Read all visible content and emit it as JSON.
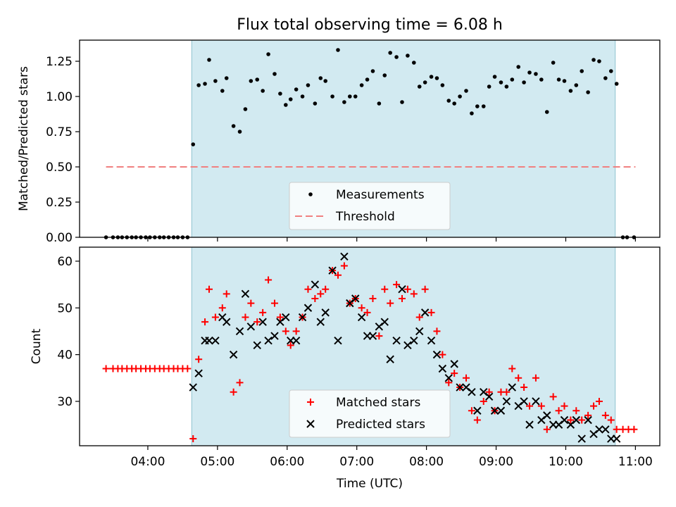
{
  "chart_data": [
    {
      "panel": "top",
      "type": "scatter",
      "title": "Flux total observing time = 6.08 h",
      "ylabel": "Matched/Predicted stars",
      "ylim": [
        0,
        1.4
      ],
      "yticks": [
        0.0,
        0.25,
        0.5,
        0.75,
        1.0,
        1.25
      ],
      "ytick_labels": [
        "0.00",
        "0.25",
        "0.50",
        "0.75",
        "1.00",
        "1.25"
      ],
      "shaded_span_x": [
        4.63,
        10.71
      ],
      "shaded_color": "#add8e6",
      "legend": {
        "location": "lower center",
        "entries": [
          "Measurements",
          "Threshold"
        ]
      },
      "series": [
        {
          "name": "Measurements",
          "marker": "dot",
          "color": "#000000",
          "points": [
            [
              3.4,
              0
            ],
            [
              3.5,
              0
            ],
            [
              3.57,
              0
            ],
            [
              3.63,
              0
            ],
            [
              3.7,
              0
            ],
            [
              3.77,
              0
            ],
            [
              3.83,
              0
            ],
            [
              3.9,
              0
            ],
            [
              3.97,
              0
            ],
            [
              4.03,
              0
            ],
            [
              4.1,
              0
            ],
            [
              4.17,
              0
            ],
            [
              4.23,
              0
            ],
            [
              4.3,
              0
            ],
            [
              4.37,
              0
            ],
            [
              4.43,
              0
            ],
            [
              4.5,
              0
            ],
            [
              4.57,
              0
            ],
            [
              4.65,
              0.66
            ],
            [
              4.73,
              1.08
            ],
            [
              4.82,
              1.09
            ],
            [
              4.88,
              1.26
            ],
            [
              4.97,
              1.11
            ],
            [
              5.07,
              1.04
            ],
            [
              5.13,
              1.13
            ],
            [
              5.23,
              0.79
            ],
            [
              5.32,
              0.75
            ],
            [
              5.4,
              0.91
            ],
            [
              5.48,
              1.11
            ],
            [
              5.57,
              1.12
            ],
            [
              5.65,
              1.04
            ],
            [
              5.73,
              1.3
            ],
            [
              5.82,
              1.16
            ],
            [
              5.9,
              1.02
            ],
            [
              5.98,
              0.94
            ],
            [
              6.05,
              0.98
            ],
            [
              6.13,
              1.05
            ],
            [
              6.22,
              1.0
            ],
            [
              6.3,
              1.08
            ],
            [
              6.4,
              0.95
            ],
            [
              6.48,
              1.13
            ],
            [
              6.55,
              1.11
            ],
            [
              6.65,
              1.0
            ],
            [
              6.73,
              1.33
            ],
            [
              6.82,
              0.96
            ],
            [
              6.9,
              1.0
            ],
            [
              6.98,
              1.0
            ],
            [
              7.07,
              1.08
            ],
            [
              7.15,
              1.12
            ],
            [
              7.23,
              1.18
            ],
            [
              7.32,
              0.95
            ],
            [
              7.4,
              1.15
            ],
            [
              7.48,
              1.31
            ],
            [
              7.57,
              1.28
            ],
            [
              7.65,
              0.96
            ],
            [
              7.73,
              1.29
            ],
            [
              7.82,
              1.24
            ],
            [
              7.9,
              1.07
            ],
            [
              7.98,
              1.1
            ],
            [
              8.07,
              1.14
            ],
            [
              8.15,
              1.13
            ],
            [
              8.23,
              1.08
            ],
            [
              8.32,
              0.97
            ],
            [
              8.4,
              0.95
            ],
            [
              8.48,
              1.0
            ],
            [
              8.57,
              1.04
            ],
            [
              8.65,
              0.88
            ],
            [
              8.73,
              0.93
            ],
            [
              8.82,
              0.93
            ],
            [
              8.9,
              1.07
            ],
            [
              8.98,
              1.14
            ],
            [
              9.07,
              1.1
            ],
            [
              9.15,
              1.07
            ],
            [
              9.23,
              1.12
            ],
            [
              9.32,
              1.21
            ],
            [
              9.4,
              1.1
            ],
            [
              9.48,
              1.17
            ],
            [
              9.57,
              1.16
            ],
            [
              9.65,
              1.12
            ],
            [
              9.73,
              0.89
            ],
            [
              9.82,
              1.24
            ],
            [
              9.9,
              1.12
            ],
            [
              9.98,
              1.11
            ],
            [
              10.07,
              1.04
            ],
            [
              10.15,
              1.08
            ],
            [
              10.23,
              1.18
            ],
            [
              10.32,
              1.03
            ],
            [
              10.4,
              1.26
            ],
            [
              10.48,
              1.25
            ],
            [
              10.57,
              1.13
            ],
            [
              10.65,
              1.18
            ],
            [
              10.73,
              1.09
            ],
            [
              10.82,
              0
            ],
            [
              10.88,
              0
            ],
            [
              10.98,
              0
            ]
          ]
        },
        {
          "name": "Threshold",
          "marker": "dashed-line",
          "color": "#f08080",
          "points": [
            [
              3.4,
              0.5
            ],
            [
              11.0,
              0.5
            ]
          ]
        }
      ]
    },
    {
      "panel": "bottom",
      "type": "scatter",
      "xlabel": "Time (UTC)",
      "ylabel": "Count",
      "xlim": [
        3.02,
        11.35
      ],
      "ylim": [
        20.5,
        63
      ],
      "xticks": [
        4,
        5,
        6,
        7,
        8,
        9,
        10,
        11
      ],
      "xtick_labels": [
        "04:00",
        "05:00",
        "06:00",
        "07:00",
        "08:00",
        "09:00",
        "10:00",
        "11:00"
      ],
      "yticks": [
        30,
        40,
        50,
        60
      ],
      "ytick_labels": [
        "30",
        "40",
        "50",
        "60"
      ],
      "shaded_span_x": [
        4.63,
        10.71
      ],
      "legend": {
        "location": "lower center",
        "entries": [
          "Matched stars",
          "Predicted stars"
        ]
      },
      "series": [
        {
          "name": "Matched stars",
          "marker": "plus",
          "color": "#ff0000",
          "points": [
            [
              3.4,
              37
            ],
            [
              3.5,
              37
            ],
            [
              3.57,
              37
            ],
            [
              3.63,
              37
            ],
            [
              3.7,
              37
            ],
            [
              3.77,
              37
            ],
            [
              3.83,
              37
            ],
            [
              3.9,
              37
            ],
            [
              3.97,
              37
            ],
            [
              4.03,
              37
            ],
            [
              4.1,
              37
            ],
            [
              4.17,
              37
            ],
            [
              4.23,
              37
            ],
            [
              4.3,
              37
            ],
            [
              4.37,
              37
            ],
            [
              4.43,
              37
            ],
            [
              4.5,
              37
            ],
            [
              4.57,
              37
            ],
            [
              4.65,
              22
            ],
            [
              4.73,
              39
            ],
            [
              4.82,
              47
            ],
            [
              4.88,
              54
            ],
            [
              4.97,
              48
            ],
            [
              5.07,
              50
            ],
            [
              5.13,
              53
            ],
            [
              5.23,
              32
            ],
            [
              5.32,
              34
            ],
            [
              5.4,
              48
            ],
            [
              5.48,
              51
            ],
            [
              5.57,
              47
            ],
            [
              5.65,
              49
            ],
            [
              5.73,
              56
            ],
            [
              5.82,
              51
            ],
            [
              5.9,
              48
            ],
            [
              5.98,
              45
            ],
            [
              6.05,
              42
            ],
            [
              6.13,
              45
            ],
            [
              6.22,
              48
            ],
            [
              6.3,
              54
            ],
            [
              6.4,
              52
            ],
            [
              6.48,
              53
            ],
            [
              6.55,
              54
            ],
            [
              6.65,
              58
            ],
            [
              6.73,
              57
            ],
            [
              6.82,
              59
            ],
            [
              6.9,
              51
            ],
            [
              6.98,
              52
            ],
            [
              7.07,
              50
            ],
            [
              7.15,
              49
            ],
            [
              7.23,
              52
            ],
            [
              7.32,
              44
            ],
            [
              7.4,
              54
            ],
            [
              7.48,
              51
            ],
            [
              7.57,
              55
            ],
            [
              7.65,
              52
            ],
            [
              7.73,
              54
            ],
            [
              7.82,
              53
            ],
            [
              7.9,
              48
            ],
            [
              7.98,
              54
            ],
            [
              8.07,
              49
            ],
            [
              8.15,
              45
            ],
            [
              8.23,
              40
            ],
            [
              8.32,
              34
            ],
            [
              8.4,
              36
            ],
            [
              8.48,
              33
            ],
            [
              8.57,
              35
            ],
            [
              8.65,
              28
            ],
            [
              8.73,
              26
            ],
            [
              8.82,
              30
            ],
            [
              8.9,
              32
            ],
            [
              8.98,
              28
            ],
            [
              9.07,
              32
            ],
            [
              9.15,
              32
            ],
            [
              9.23,
              37
            ],
            [
              9.32,
              35
            ],
            [
              9.4,
              33
            ],
            [
              9.48,
              29
            ],
            [
              9.57,
              35
            ],
            [
              9.65,
              29
            ],
            [
              9.73,
              24
            ],
            [
              9.82,
              31
            ],
            [
              9.9,
              28
            ],
            [
              9.98,
              29
            ],
            [
              10.07,
              26
            ],
            [
              10.15,
              28
            ],
            [
              10.23,
              26
            ],
            [
              10.32,
              27
            ],
            [
              10.4,
              29
            ],
            [
              10.48,
              30
            ],
            [
              10.57,
              27
            ],
            [
              10.65,
              26
            ],
            [
              10.73,
              24
            ],
            [
              10.82,
              24
            ],
            [
              10.9,
              24
            ],
            [
              10.98,
              24
            ]
          ]
        },
        {
          "name": "Predicted stars",
          "marker": "x",
          "color": "#000000",
          "points": [
            [
              4.65,
              33
            ],
            [
              4.73,
              36
            ],
            [
              4.82,
              43
            ],
            [
              4.88,
              43
            ],
            [
              4.97,
              43
            ],
            [
              5.07,
              48
            ],
            [
              5.13,
              47
            ],
            [
              5.23,
              40
            ],
            [
              5.32,
              45
            ],
            [
              5.4,
              53
            ],
            [
              5.48,
              46
            ],
            [
              5.57,
              42
            ],
            [
              5.65,
              47
            ],
            [
              5.73,
              43
            ],
            [
              5.82,
              44
            ],
            [
              5.9,
              47
            ],
            [
              5.98,
              48
            ],
            [
              6.05,
              43
            ],
            [
              6.13,
              43
            ],
            [
              6.22,
              48
            ],
            [
              6.3,
              50
            ],
            [
              6.4,
              55
            ],
            [
              6.48,
              47
            ],
            [
              6.55,
              49
            ],
            [
              6.65,
              58
            ],
            [
              6.73,
              43
            ],
            [
              6.82,
              61
            ],
            [
              6.9,
              51
            ],
            [
              6.98,
              52
            ],
            [
              7.07,
              48
            ],
            [
              7.15,
              44
            ],
            [
              7.23,
              44
            ],
            [
              7.32,
              46
            ],
            [
              7.4,
              47
            ],
            [
              7.48,
              39
            ],
            [
              7.57,
              43
            ],
            [
              7.65,
              54
            ],
            [
              7.73,
              42
            ],
            [
              7.82,
              43
            ],
            [
              7.9,
              45
            ],
            [
              7.98,
              49
            ],
            [
              8.07,
              43
            ],
            [
              8.15,
              40
            ],
            [
              8.23,
              37
            ],
            [
              8.32,
              35
            ],
            [
              8.4,
              38
            ],
            [
              8.48,
              33
            ],
            [
              8.57,
              33
            ],
            [
              8.65,
              32
            ],
            [
              8.73,
              28
            ],
            [
              8.82,
              32
            ],
            [
              8.9,
              31
            ],
            [
              8.98,
              28
            ],
            [
              9.07,
              28
            ],
            [
              9.15,
              30
            ],
            [
              9.23,
              33
            ],
            [
              9.32,
              29
            ],
            [
              9.4,
              30
            ],
            [
              9.48,
              25
            ],
            [
              9.57,
              30
            ],
            [
              9.65,
              26
            ],
            [
              9.73,
              27
            ],
            [
              9.82,
              25
            ],
            [
              9.9,
              25
            ],
            [
              9.98,
              26
            ],
            [
              10.07,
              25
            ],
            [
              10.15,
              26
            ],
            [
              10.23,
              22
            ],
            [
              10.32,
              26
            ],
            [
              10.4,
              23
            ],
            [
              10.48,
              24
            ],
            [
              10.57,
              24
            ],
            [
              10.65,
              22
            ],
            [
              10.73,
              22
            ]
          ]
        }
      ]
    }
  ]
}
